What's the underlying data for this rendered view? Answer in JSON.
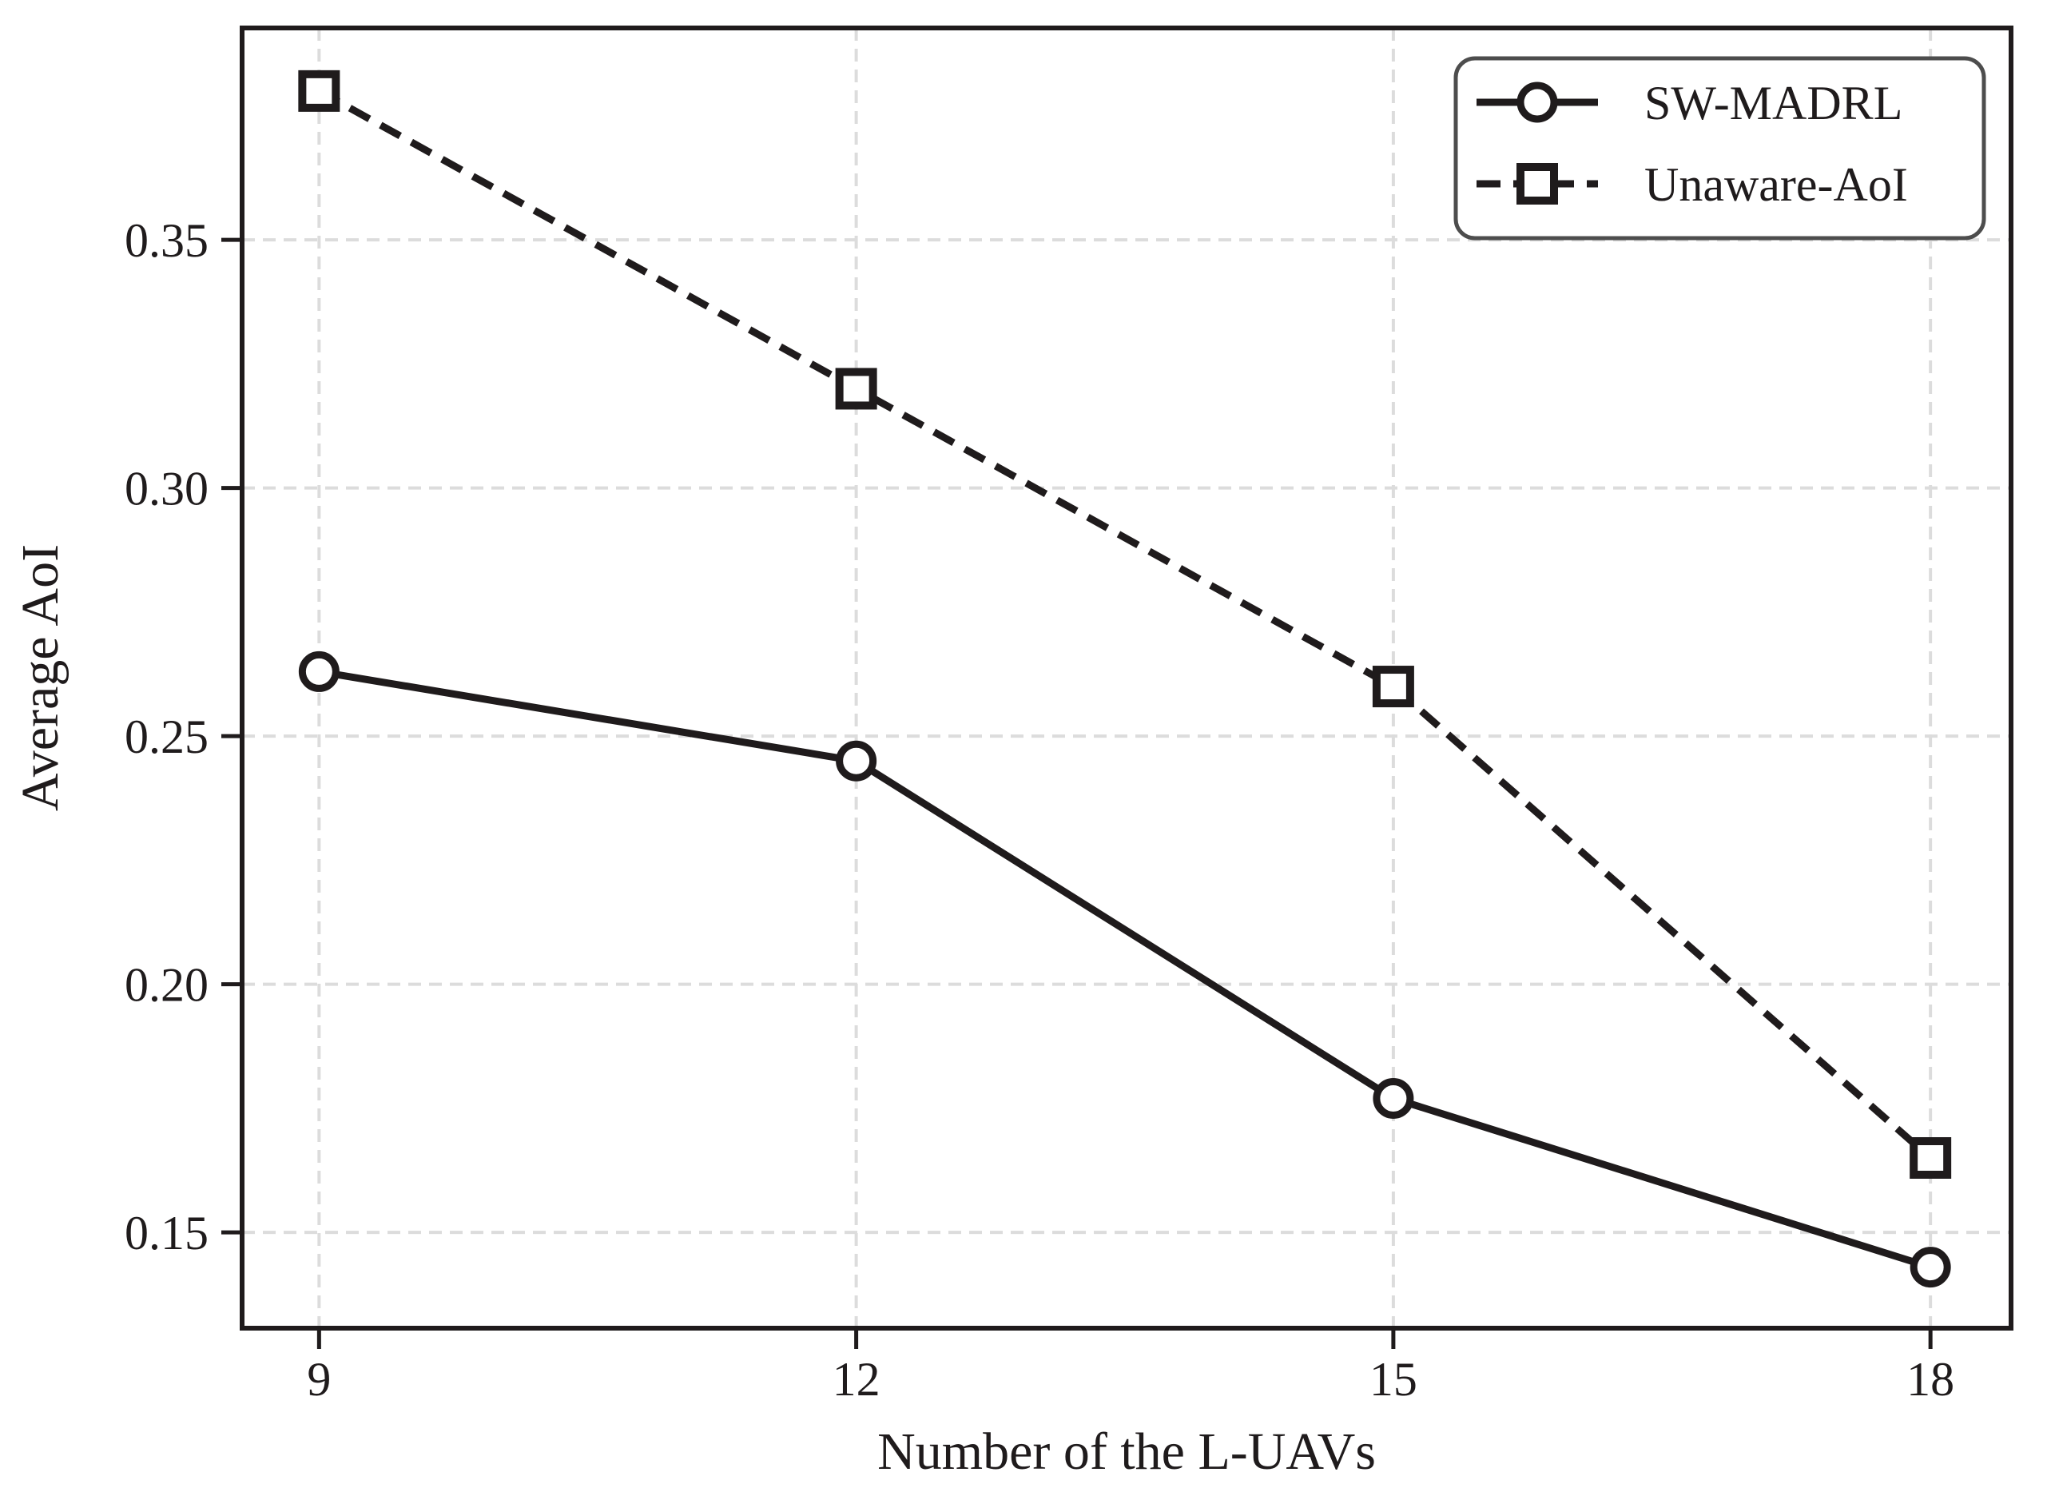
{
  "figure": {
    "background_color": "#ffffff",
    "axes_color": "#1f1b1c",
    "grid_color": "#dcdcdc",
    "legend_border_color": "#4d4d4d"
  },
  "chart_data": {
    "type": "line",
    "title": "",
    "xlabel": "Number of the L-UAVs",
    "ylabel": "Average AoI",
    "x": [
      9,
      12,
      15,
      18
    ],
    "xtick_labels": [
      "9",
      "12",
      "15",
      "18"
    ],
    "yticks": [
      0.15,
      0.2,
      0.25,
      0.3,
      0.35
    ],
    "ytick_labels": [
      "0.15",
      "0.20",
      "0.25",
      "0.30",
      "0.35"
    ],
    "xlim": [
      8.57,
      18.45
    ],
    "ylim": [
      0.1307,
      0.3927
    ],
    "grid": true,
    "legend_position": "upper right",
    "series": [
      {
        "name": "SW-MADRL",
        "values": [
          0.263,
          0.245,
          0.177,
          0.143
        ],
        "line_style": "solid",
        "marker": "circle",
        "color": "#1f1b1c"
      },
      {
        "name": "Unaware-AoI",
        "values": [
          0.38,
          0.32,
          0.26,
          0.165
        ],
        "line_style": "dashed",
        "marker": "square",
        "color": "#1f1b1c"
      }
    ]
  }
}
